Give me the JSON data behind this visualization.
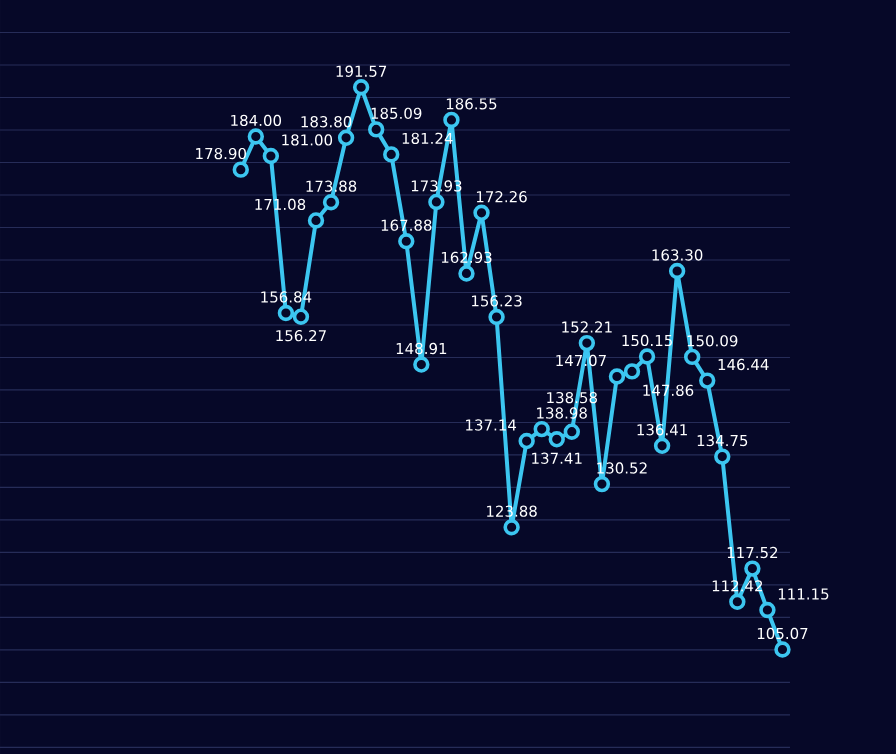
{
  "chart_data": {
    "type": "line",
    "categories": [
      null,
      null,
      null,
      null,
      null,
      null,
      null,
      null,
      null,
      null,
      null,
      null,
      null,
      null,
      null,
      null,
      null,
      null,
      null,
      null,
      null,
      null,
      null,
      null,
      null,
      null,
      null,
      null,
      null,
      null,
      null,
      null,
      null,
      null,
      null,
      null,
      null,
      null
    ],
    "series": [
      {
        "color": "#3cc6f0",
        "values": [
          null,
          178.9,
          184.0,
          181.0,
          156.84,
          156.27,
          171.08,
          173.88,
          183.8,
          191.57,
          185.09,
          181.24,
          167.88,
          148.91,
          173.93,
          186.55,
          162.93,
          172.26,
          156.23,
          123.88,
          137.14,
          138.98,
          137.41,
          138.58,
          152.21,
          130.52,
          147.07,
          147.86,
          150.15,
          136.41,
          163.3,
          150.09,
          146.44,
          134.75,
          112.42,
          117.52,
          111.15,
          105.07
        ],
        "value_labels": [
          null,
          "178.90",
          "184.00",
          "181.00",
          "156.84",
          "156.27",
          "171.08",
          "173.88",
          "183.80",
          "191.57",
          "185.09",
          "181.24",
          "167.88",
          "148.91",
          "173.93",
          "186.55",
          "162.93",
          "172.26",
          "156.23",
          "123.88",
          "137.14",
          "138.98",
          "137.41",
          "138.58",
          "152.21",
          "130.52",
          "147.07",
          "147.86",
          "150.15",
          "136.41",
          "163.30",
          "150.09",
          "146.44",
          "134.75",
          "112.42",
          "117.52",
          "111.15",
          "105.07"
        ]
      }
    ],
    "ylim": [
      89,
      205
    ],
    "yticks": [
      {
        "value": 90,
        "label": null
      },
      {
        "value": 95,
        "label": null
      },
      {
        "value": 100,
        "label": null
      },
      {
        "value": 105,
        "label": null
      },
      {
        "value": 110,
        "label": null
      },
      {
        "value": 115,
        "label": null
      },
      {
        "value": 120,
        "label": null
      },
      {
        "value": 125,
        "label": null
      },
      {
        "value": 130,
        "label": null
      },
      {
        "value": 135,
        "label": null
      },
      {
        "value": 140,
        "label": null
      },
      {
        "value": 145,
        "label": null
      },
      {
        "value": 150,
        "label": null
      },
      {
        "value": 155,
        "label": null
      },
      {
        "value": 160,
        "label": null
      },
      {
        "value": 165,
        "label": null
      },
      {
        "value": 170,
        "label": null
      },
      {
        "value": 175,
        "label": null
      },
      {
        "value": 180,
        "label": null
      },
      {
        "value": 185,
        "label": null
      },
      {
        "value": 190,
        "label": null
      },
      {
        "value": 195,
        "label": null
      },
      {
        "value": 200,
        "label": null
      }
    ],
    "grid": "y",
    "marker": "circle",
    "line_style": "solid"
  }
}
